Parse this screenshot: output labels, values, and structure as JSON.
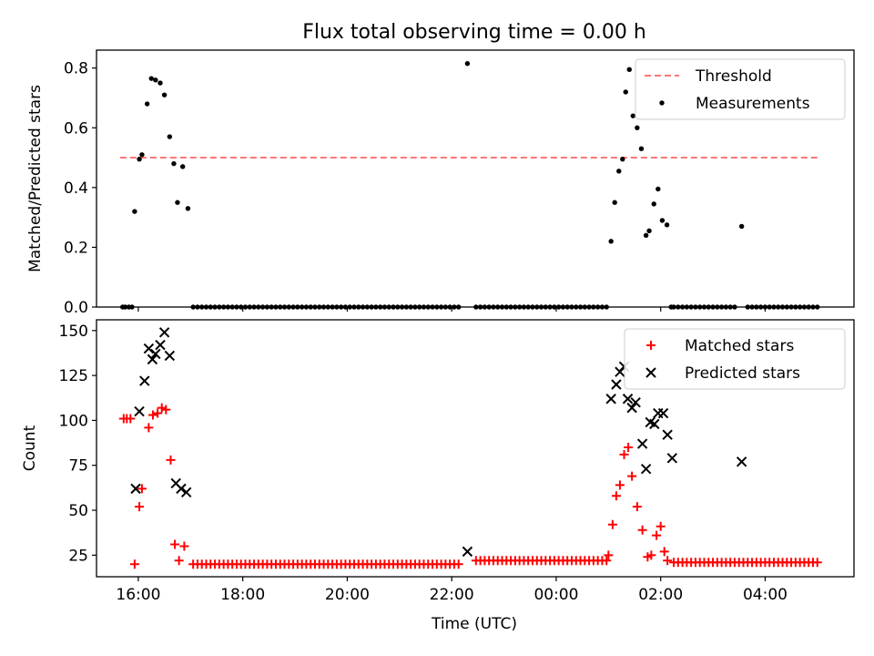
{
  "chart_data": [
    {
      "type": "scatter",
      "title": "Flux total observing time = 0.00 h",
      "xlabel": "",
      "ylabel": "Matched/Predicted stars",
      "x_unit": "hours UTC (values after 24:00 = next day)",
      "xlim": [
        15.2,
        29.7
      ],
      "ylim": [
        0,
        0.86
      ],
      "xticks": [
        {
          "x": 16,
          "label": ""
        },
        {
          "x": 18,
          "label": ""
        },
        {
          "x": 20,
          "label": ""
        },
        {
          "x": 22,
          "label": ""
        },
        {
          "x": 24,
          "label": ""
        },
        {
          "x": 26,
          "label": ""
        },
        {
          "x": 28,
          "label": ""
        }
      ],
      "yticks": [
        {
          "y": 0.0,
          "label": "0.0"
        },
        {
          "y": 0.2,
          "label": "0.2"
        },
        {
          "y": 0.4,
          "label": "0.4"
        },
        {
          "y": 0.6,
          "label": "0.6"
        },
        {
          "y": 0.8,
          "label": "0.8"
        }
      ],
      "legend_placement": "upper right",
      "grid": false,
      "series": [
        {
          "name": "Threshold",
          "kind": "line",
          "style": "dashed",
          "color": "#ff7777",
          "x": [
            15.65,
            29.0
          ],
          "y": [
            0.5,
            0.5
          ]
        },
        {
          "name": "Measurements",
          "kind": "points",
          "marker": "dot",
          "color": "#000000",
          "x": [
            15.7,
            15.75,
            15.82,
            15.88,
            15.93,
            16.02,
            16.07,
            16.17,
            16.25,
            16.33,
            16.42,
            16.5,
            16.6,
            16.68,
            16.75,
            16.85,
            16.95,
            22.3,
            25.05,
            25.12,
            25.2,
            25.27,
            25.33,
            25.4,
            25.47,
            25.55,
            25.63,
            25.72,
            25.78,
            25.87,
            25.95,
            26.03,
            26.12,
            26.2,
            27.55
          ],
          "y": [
            0.0,
            0.0,
            0.0,
            0.0,
            0.32,
            0.495,
            0.51,
            0.68,
            0.765,
            0.76,
            0.75,
            0.71,
            0.57,
            0.48,
            0.35,
            0.47,
            0.33,
            0.815,
            0.22,
            0.35,
            0.455,
            0.495,
            0.72,
            0.795,
            0.64,
            0.6,
            0.53,
            0.24,
            0.255,
            0.345,
            0.395,
            0.29,
            0.275,
            0.0,
            0.27
          ]
        }
      ]
    },
    {
      "type": "scatter",
      "title": "",
      "xlabel": "Time (UTC)",
      "ylabel": "Count",
      "x_unit": "hours UTC (values after 24:00 = next day)",
      "xlim": [
        15.2,
        29.7
      ],
      "ylim": [
        13,
        156
      ],
      "xticks": [
        {
          "x": 16,
          "label": "16:00"
        },
        {
          "x": 18,
          "label": "18:00"
        },
        {
          "x": 20,
          "label": "20:00"
        },
        {
          "x": 22,
          "label": "22:00"
        },
        {
          "x": 24,
          "label": "00:00"
        },
        {
          "x": 26,
          "label": "02:00"
        },
        {
          "x": 28,
          "label": "04:00"
        }
      ],
      "yticks": [
        {
          "y": 25,
          "label": "25"
        },
        {
          "y": 50,
          "label": "50"
        },
        {
          "y": 75,
          "label": "75"
        },
        {
          "y": 100,
          "label": "100"
        },
        {
          "y": 125,
          "label": "125"
        },
        {
          "y": 150,
          "label": "150"
        }
      ],
      "legend_placement": "upper right",
      "grid": false,
      "series": [
        {
          "name": "Matched stars",
          "kind": "points",
          "marker": "plus",
          "color": "#ff0000",
          "x": [
            15.72,
            15.78,
            15.85,
            15.93,
            16.02,
            16.07,
            16.2,
            16.28,
            16.37,
            16.45,
            16.53,
            16.62,
            16.7,
            16.78,
            16.88,
            25.0,
            25.08,
            25.15,
            25.22,
            25.3,
            25.38,
            25.45,
            25.55,
            25.65,
            25.75,
            25.82,
            25.92,
            26.0,
            26.07,
            26.13
          ],
          "y": [
            101,
            101,
            101,
            20,
            52,
            62,
            96,
            103,
            104,
            107,
            106,
            78,
            31,
            22,
            30,
            25,
            42,
            58,
            64,
            81,
            85,
            69,
            52,
            39,
            24,
            25,
            36,
            41,
            27,
            22
          ]
        },
        {
          "name": "Predicted stars",
          "kind": "points",
          "marker": "cross",
          "color": "#000000",
          "x": [
            15.95,
            16.02,
            16.12,
            16.2,
            16.27,
            16.33,
            16.42,
            16.5,
            16.6,
            16.72,
            16.82,
            16.92,
            22.3,
            25.05,
            25.15,
            25.22,
            25.3,
            25.37,
            25.45,
            25.52,
            25.65,
            25.72,
            25.8,
            25.88,
            25.95,
            26.05,
            26.13,
            26.22,
            27.55
          ],
          "y": [
            62,
            105,
            122,
            140,
            134,
            137,
            142,
            149,
            136,
            65,
            62,
            60,
            27,
            112,
            120,
            127,
            130,
            112,
            107,
            110,
            87,
            73,
            99,
            98,
            104,
            104,
            92,
            79,
            77
          ]
        }
      ]
    }
  ],
  "fill_step": {
    "start": 17.05,
    "interval": 0.0833,
    "ratio_value": 0.0,
    "matched_before_gap": 20,
    "matched_after_gap": 22,
    "gap_after": 22.2,
    "late_start": 26.25,
    "late_stop": 29.05,
    "late_ratio_value": 0.0,
    "late_matched_value": 21,
    "late_gap": [
      27.45,
      27.65
    ]
  }
}
